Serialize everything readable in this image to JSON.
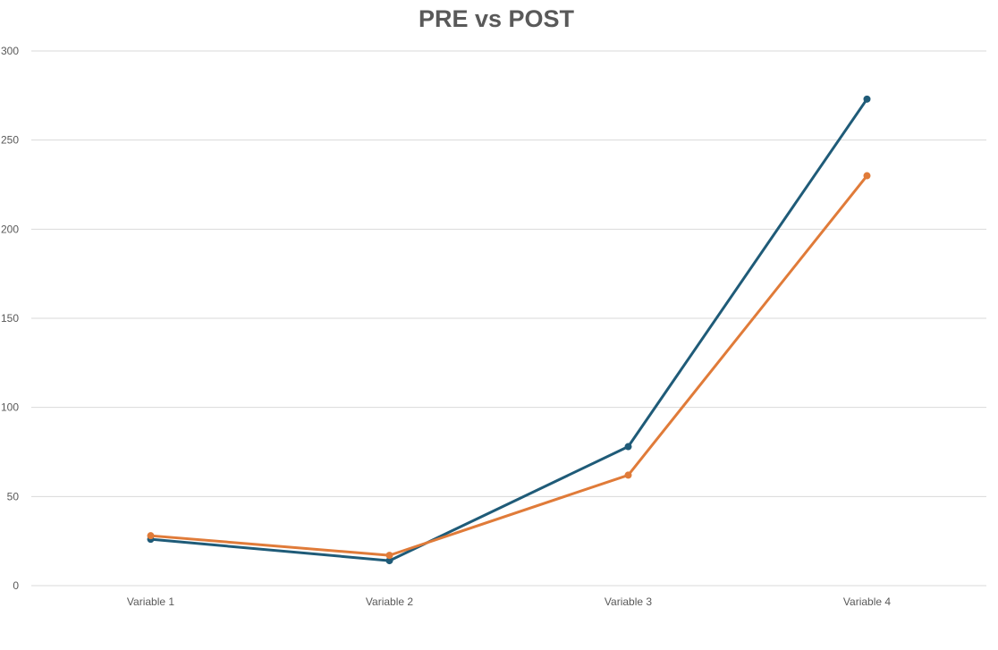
{
  "chart_data": {
    "type": "line",
    "title": "PRE vs POST",
    "categories": [
      "Variable 1",
      "Variable 2",
      "Variable 3",
      "Variable 4"
    ],
    "y_ticks": [
      "0",
      "50",
      "100",
      "150",
      "200",
      "250",
      "300"
    ],
    "ylim": [
      0,
      300
    ],
    "grid": true,
    "series": [
      {
        "color": "#1f5b78",
        "values": [
          26,
          14,
          78,
          273
        ]
      },
      {
        "color": "#e07b39",
        "values": [
          28,
          17,
          62,
          230
        ]
      }
    ]
  }
}
